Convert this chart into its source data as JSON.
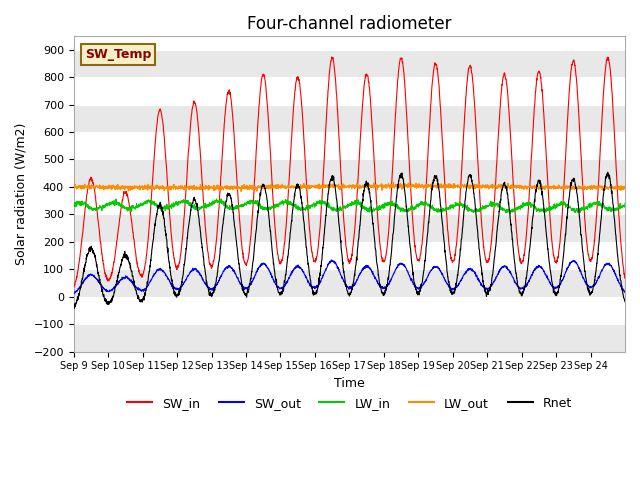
{
  "title": "Four-channel radiometer",
  "xlabel": "Time",
  "ylabel": "Solar radiation (W/m2)",
  "ylim": [
    -200,
    950
  ],
  "yticks": [
    -200,
    -100,
    0,
    100,
    200,
    300,
    400,
    500,
    600,
    700,
    800,
    900
  ],
  "annotation_text": "SW_Temp",
  "annotation_box_color": "#f5f0c8",
  "annotation_box_edge": "#8B6914",
  "annotation_text_color": "#8B0000",
  "colors": {
    "SW_in": "#ff0000",
    "SW_out": "#0000ff",
    "LW_in": "#00cc00",
    "LW_out": "#ff8c00",
    "Rnet": "#000000"
  },
  "legend_labels": [
    "SW_in",
    "SW_out",
    "LW_in",
    "LW_out",
    "Rnet"
  ],
  "x_tick_labels": [
    "Sep 9",
    "Sep 10",
    "Sep 11",
    "Sep 12",
    "Sep 13",
    "Sep 14",
    "Sep 15",
    "Sep 16",
    "Sep 17",
    "Sep 18",
    "Sep 19",
    "Sep 20",
    "Sep 21",
    "Sep 22",
    "Sep 23",
    "Sep 24"
  ],
  "peaks_sw_in": [
    430,
    380,
    680,
    710,
    750,
    810,
    800,
    870,
    810,
    870,
    850,
    840,
    810,
    820,
    860,
    870
  ],
  "peaks_sw_out": [
    80,
    70,
    100,
    100,
    110,
    120,
    110,
    130,
    110,
    120,
    110,
    100,
    110,
    110,
    130,
    120
  ],
  "num_days": 16,
  "points_per_day": 144,
  "background_color": "#ffffff",
  "band_color": "#e8e8e8"
}
